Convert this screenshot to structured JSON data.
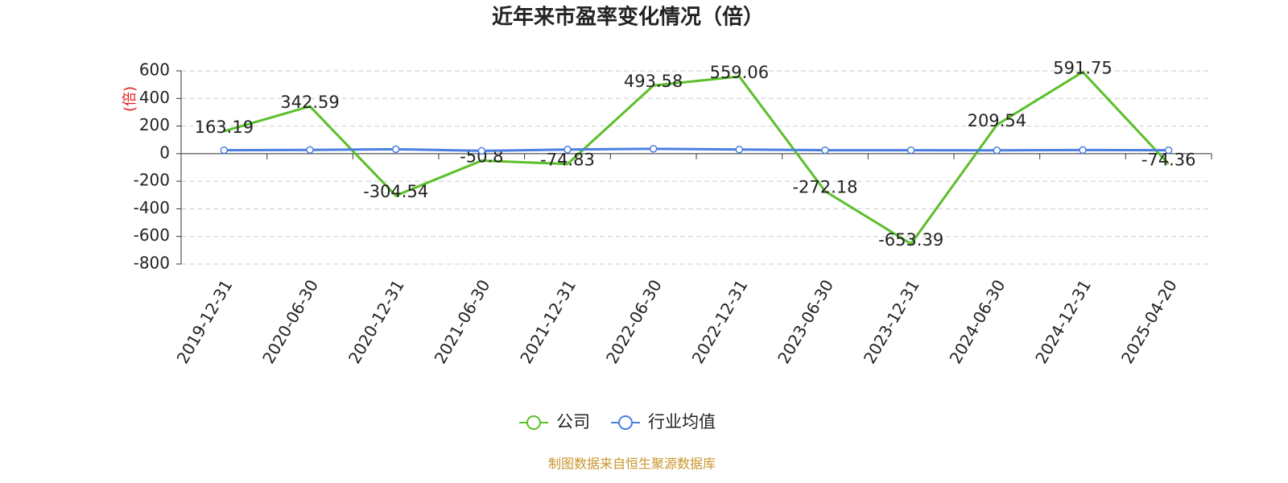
{
  "chart_data": {
    "type": "line",
    "title": "近年来市盈率变化情况（倍）",
    "y_label": "(倍)",
    "source": "制图数据来自恒生聚源数据库",
    "categories": [
      "2019-12-31",
      "2020-06-30",
      "2020-12-31",
      "2021-06-30",
      "2021-12-31",
      "2022-06-30",
      "2022-12-31",
      "2023-06-30",
      "2023-12-31",
      "2024-06-30",
      "2024-12-31",
      "2025-04-20"
    ],
    "series": [
      {
        "name": "公司",
        "color": "#5cbf2a",
        "values": [
          163.19,
          342.59,
          -304.54,
          -50.8,
          -74.83,
          493.58,
          559.06,
          -272.18,
          -653.39,
          209.54,
          591.75,
          -74.36
        ],
        "data_labels": true
      },
      {
        "name": "行业均值",
        "color": "#4a7fe0",
        "values": [
          25,
          27,
          32,
          20,
          30,
          35,
          30,
          25,
          25,
          24,
          26,
          25
        ],
        "markers": true
      }
    ],
    "ylim": [
      -800,
      600
    ],
    "yticks": [
      -800,
      -600,
      -400,
      -200,
      0,
      200,
      400,
      600
    ],
    "grid": true,
    "legend": "bottom"
  }
}
